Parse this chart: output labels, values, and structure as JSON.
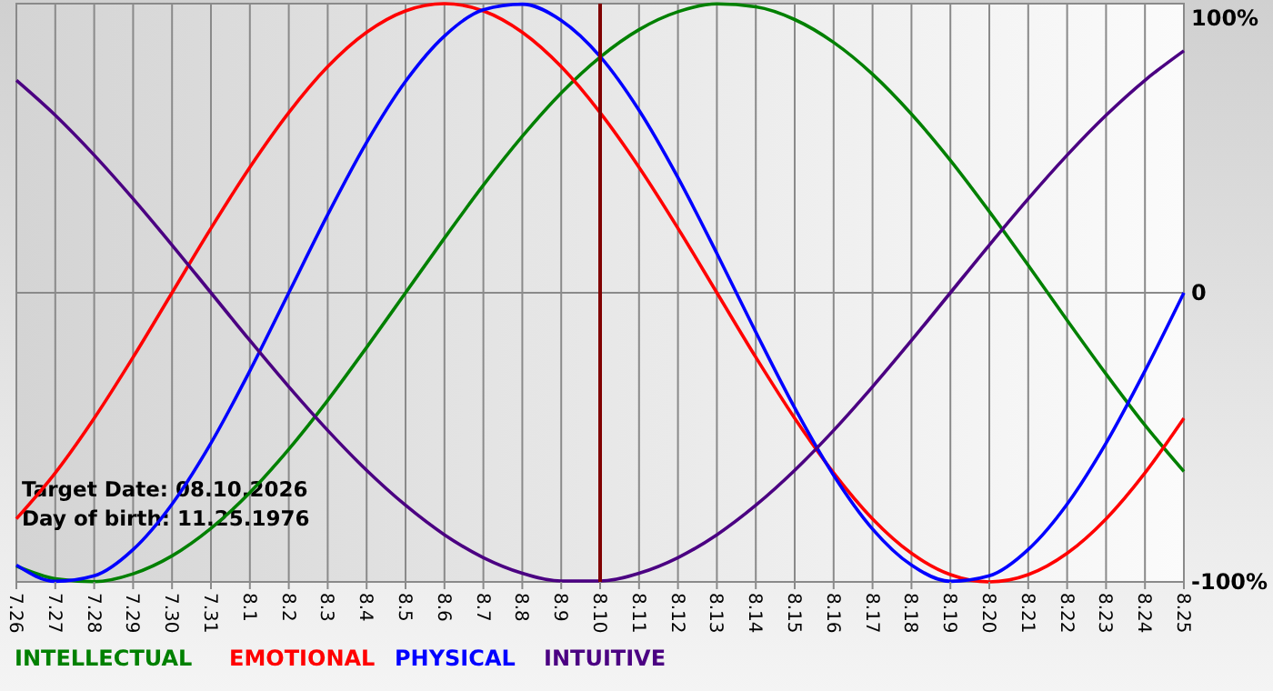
{
  "chart_data": {
    "type": "line",
    "categories": [
      "7.26",
      "7.27",
      "7.28",
      "7.29",
      "7.30",
      "7.31",
      "8.1",
      "8.2",
      "8.3",
      "8.4",
      "8.5",
      "8.6",
      "8.7",
      "8.8",
      "8.9",
      "8.10",
      "8.11",
      "8.12",
      "8.13",
      "8.14",
      "8.15",
      "8.16",
      "8.17",
      "8.18",
      "8.19",
      "8.20",
      "8.21",
      "8.22",
      "8.23",
      "8.24",
      "8.25"
    ],
    "series": [
      {
        "name": "INTELLECTUAL",
        "color": "#008000",
        "values": [
          -94.5,
          -98.9,
          -99.9,
          -97.2,
          -91.0,
          -81.5,
          -69.1,
          -54.1,
          -37.2,
          -18.9,
          0,
          18.9,
          37.2,
          54.1,
          69.1,
          81.5,
          91.0,
          97.2,
          99.9,
          98.9,
          94.5,
          86.6,
          75.6,
          61.8,
          45.8,
          28.1,
          9.5,
          -9.5,
          -28.1,
          -45.8,
          -61.8
        ]
      },
      {
        "name": "EMOTIONAL",
        "color": "#ff0000",
        "values": [
          -78.2,
          -62.3,
          -43.4,
          -22.3,
          0,
          22.3,
          43.4,
          62.3,
          78.2,
          90.1,
          97.5,
          100,
          97.5,
          90.1,
          78.2,
          62.3,
          43.4,
          22.3,
          0,
          -22.3,
          -43.4,
          -62.3,
          -78.2,
          -90.1,
          -97.5,
          -100,
          -97.5,
          -90.1,
          -78.2,
          -62.3,
          -43.4
        ]
      },
      {
        "name": "PHYSICAL",
        "color": "#0000ff",
        "values": [
          -94.2,
          -99.8,
          -97.9,
          -88.8,
          -73.1,
          -52.0,
          -27.0,
          0,
          27.0,
          52.0,
          73.1,
          88.8,
          97.9,
          99.8,
          94.2,
          81.7,
          63.1,
          39.8,
          13.6,
          -13.6,
          -39.8,
          -63.1,
          -81.7,
          -94.2,
          -99.8,
          -97.9,
          -88.8,
          -73.1,
          -52.0,
          -27.0,
          0
        ]
      },
      {
        "name": "INTUITIVE",
        "color": "#4b0082",
        "values": [
          73.5,
          61.4,
          47.6,
          32.5,
          16.5,
          0,
          -16.5,
          -32.5,
          -47.6,
          -61.4,
          -73.5,
          -83.7,
          -91.6,
          -97.0,
          -99.7,
          -99.7,
          -97.0,
          -91.6,
          -83.7,
          -73.5,
          -61.4,
          -47.6,
          -32.5,
          -16.5,
          0,
          16.5,
          32.5,
          47.6,
          61.4,
          73.5,
          83.7
        ]
      }
    ],
    "ylim": [
      -100,
      100
    ],
    "yticks": [
      {
        "value": 100,
        "label": "100%"
      },
      0,
      {
        "value": -100,
        "label": "-100%"
      }
    ],
    "grid": true,
    "legend": "bottom",
    "ref_lines": [
      {
        "axis": "x",
        "value": "8.10",
        "color": "#800000"
      }
    ],
    "annotations": [
      "Target Date: 08.10.2026",
      "Day of birth: 11.25.1976"
    ]
  }
}
